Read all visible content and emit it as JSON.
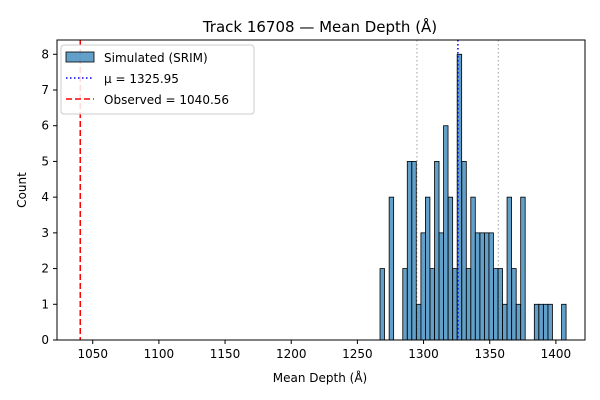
{
  "chart_data": {
    "type": "bar",
    "title": "Track 16708 — Mean Depth (Å)",
    "xlabel": "Mean Depth (Å)",
    "ylabel": "Count",
    "xlim": [
      1023,
      1422
    ],
    "ylim": [
      0,
      8.4
    ],
    "xticks": [
      1050,
      1100,
      1150,
      1200,
      1250,
      1300,
      1350,
      1400
    ],
    "yticks": [
      0,
      1,
      2,
      3,
      4,
      5,
      6,
      7,
      8
    ],
    "bin_width": 3.4,
    "legend_position": "upper-left",
    "series": [
      {
        "name": "Simulated (SRIM)",
        "color": "#1f77b4",
        "bins": [
          {
            "x": 1267.1,
            "count": 2
          },
          {
            "x": 1274.0,
            "count": 4
          },
          {
            "x": 1284.3,
            "count": 2
          },
          {
            "x": 1287.7,
            "count": 5
          },
          {
            "x": 1291.1,
            "count": 5
          },
          {
            "x": 1294.6,
            "count": 1
          },
          {
            "x": 1298.0,
            "count": 3
          },
          {
            "x": 1301.4,
            "count": 4
          },
          {
            "x": 1304.9,
            "count": 2
          },
          {
            "x": 1308.3,
            "count": 5
          },
          {
            "x": 1311.7,
            "count": 3
          },
          {
            "x": 1315.1,
            "count": 6
          },
          {
            "x": 1318.6,
            "count": 4
          },
          {
            "x": 1322.0,
            "count": 2
          },
          {
            "x": 1325.4,
            "count": 8
          },
          {
            "x": 1328.9,
            "count": 5
          },
          {
            "x": 1332.3,
            "count": 2
          },
          {
            "x": 1335.7,
            "count": 4
          },
          {
            "x": 1339.1,
            "count": 3
          },
          {
            "x": 1342.6,
            "count": 3
          },
          {
            "x": 1346.0,
            "count": 3
          },
          {
            "x": 1349.4,
            "count": 3
          },
          {
            "x": 1352.9,
            "count": 2
          },
          {
            "x": 1356.3,
            "count": 2
          },
          {
            "x": 1359.7,
            "count": 1
          },
          {
            "x": 1363.1,
            "count": 4
          },
          {
            "x": 1366.6,
            "count": 2
          },
          {
            "x": 1370.0,
            "count": 1
          },
          {
            "x": 1373.4,
            "count": 4
          },
          {
            "x": 1383.7,
            "count": 1
          },
          {
            "x": 1387.1,
            "count": 1
          },
          {
            "x": 1390.6,
            "count": 1
          },
          {
            "x": 1394.0,
            "count": 1
          },
          {
            "x": 1404.3,
            "count": 1
          }
        ]
      }
    ],
    "lines": [
      {
        "name": "μ = 1325.95",
        "x": 1325.95,
        "color": "#0000ff",
        "style": "dotted"
      },
      {
        "name": "Observed = 1040.56",
        "x": 1040.56,
        "color": "#ff0000",
        "style": "dashed"
      }
    ],
    "sigma_lines": [
      {
        "x": 1295.0,
        "color": "#b0b0b0",
        "style": "dotted"
      },
      {
        "x": 1356.5,
        "color": "#b0b0b0",
        "style": "dotted"
      }
    ]
  }
}
